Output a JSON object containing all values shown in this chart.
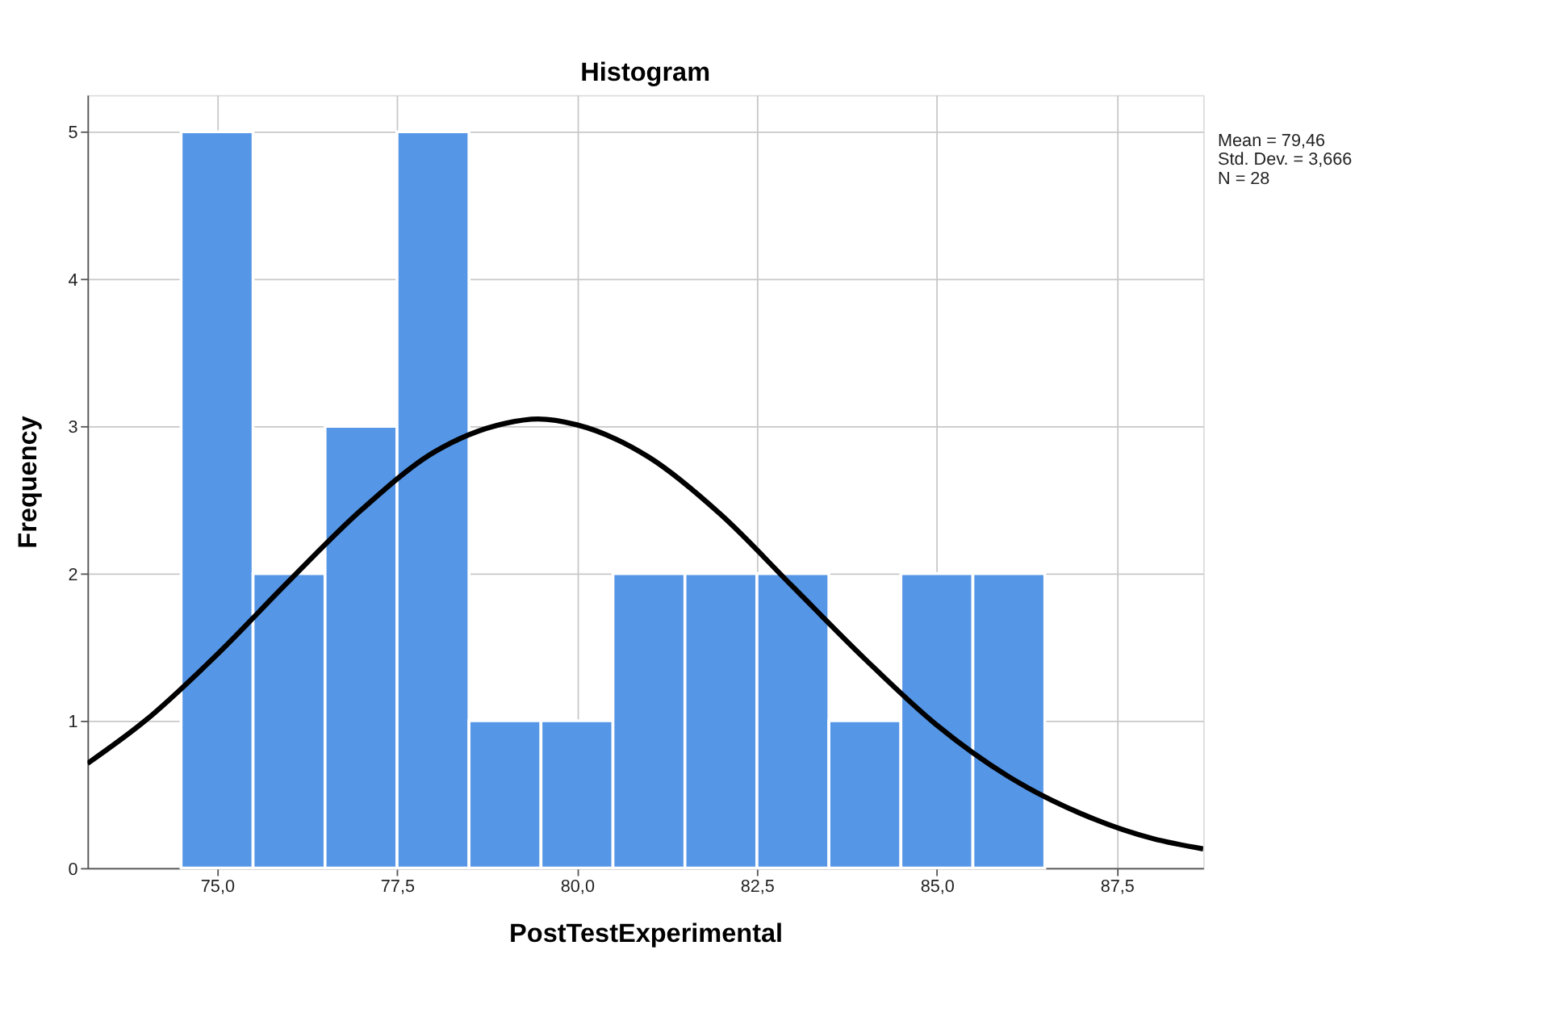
{
  "chart_data": {
    "type": "histogram",
    "title": "Histogram",
    "xlabel": "PostTestExperimental",
    "ylabel": "Frequency",
    "bins": [
      74.5,
      75.5,
      76.5,
      77.5,
      78.5,
      79.5,
      80.5,
      81.5,
      82.5,
      83.5,
      84.5,
      85.5,
      86.5
    ],
    "values": [
      5,
      2,
      3,
      5,
      1,
      1,
      2,
      2,
      2,
      1,
      2,
      2
    ],
    "color": "#5596e6",
    "series": [
      {
        "type": "line",
        "color": "#000000",
        "x": [
          73.2,
          74,
          75,
          76,
          77,
          78,
          79,
          79.46,
          80,
          81,
          82,
          83,
          84,
          85,
          86,
          87,
          88,
          88.7
        ],
        "values": [
          0.71,
          1.0,
          1.45,
          1.95,
          2.43,
          2.82,
          3.02,
          3.05,
          3.01,
          2.79,
          2.4,
          1.91,
          1.42,
          0.97,
          0.62,
          0.37,
          0.2,
          0.13
        ]
      }
    ],
    "xlim": [
      73.2,
      88.7
    ],
    "xticks": [
      {
        "value": 75,
        "label": "75,0"
      },
      {
        "value": 77.5,
        "label": "77,5"
      },
      {
        "value": 80,
        "label": "80,0"
      },
      {
        "value": 82.5,
        "label": "82,5"
      },
      {
        "value": 85,
        "label": "85,0"
      },
      {
        "value": 87.5,
        "label": "87,5"
      }
    ],
    "ylim": [
      0,
      5.25
    ],
    "yticks": [
      0,
      1,
      2,
      3,
      4,
      5
    ],
    "grid": true,
    "annotations": [
      "Mean = 79,46",
      "Std. Dev. = 3,666",
      "N = 28"
    ]
  }
}
